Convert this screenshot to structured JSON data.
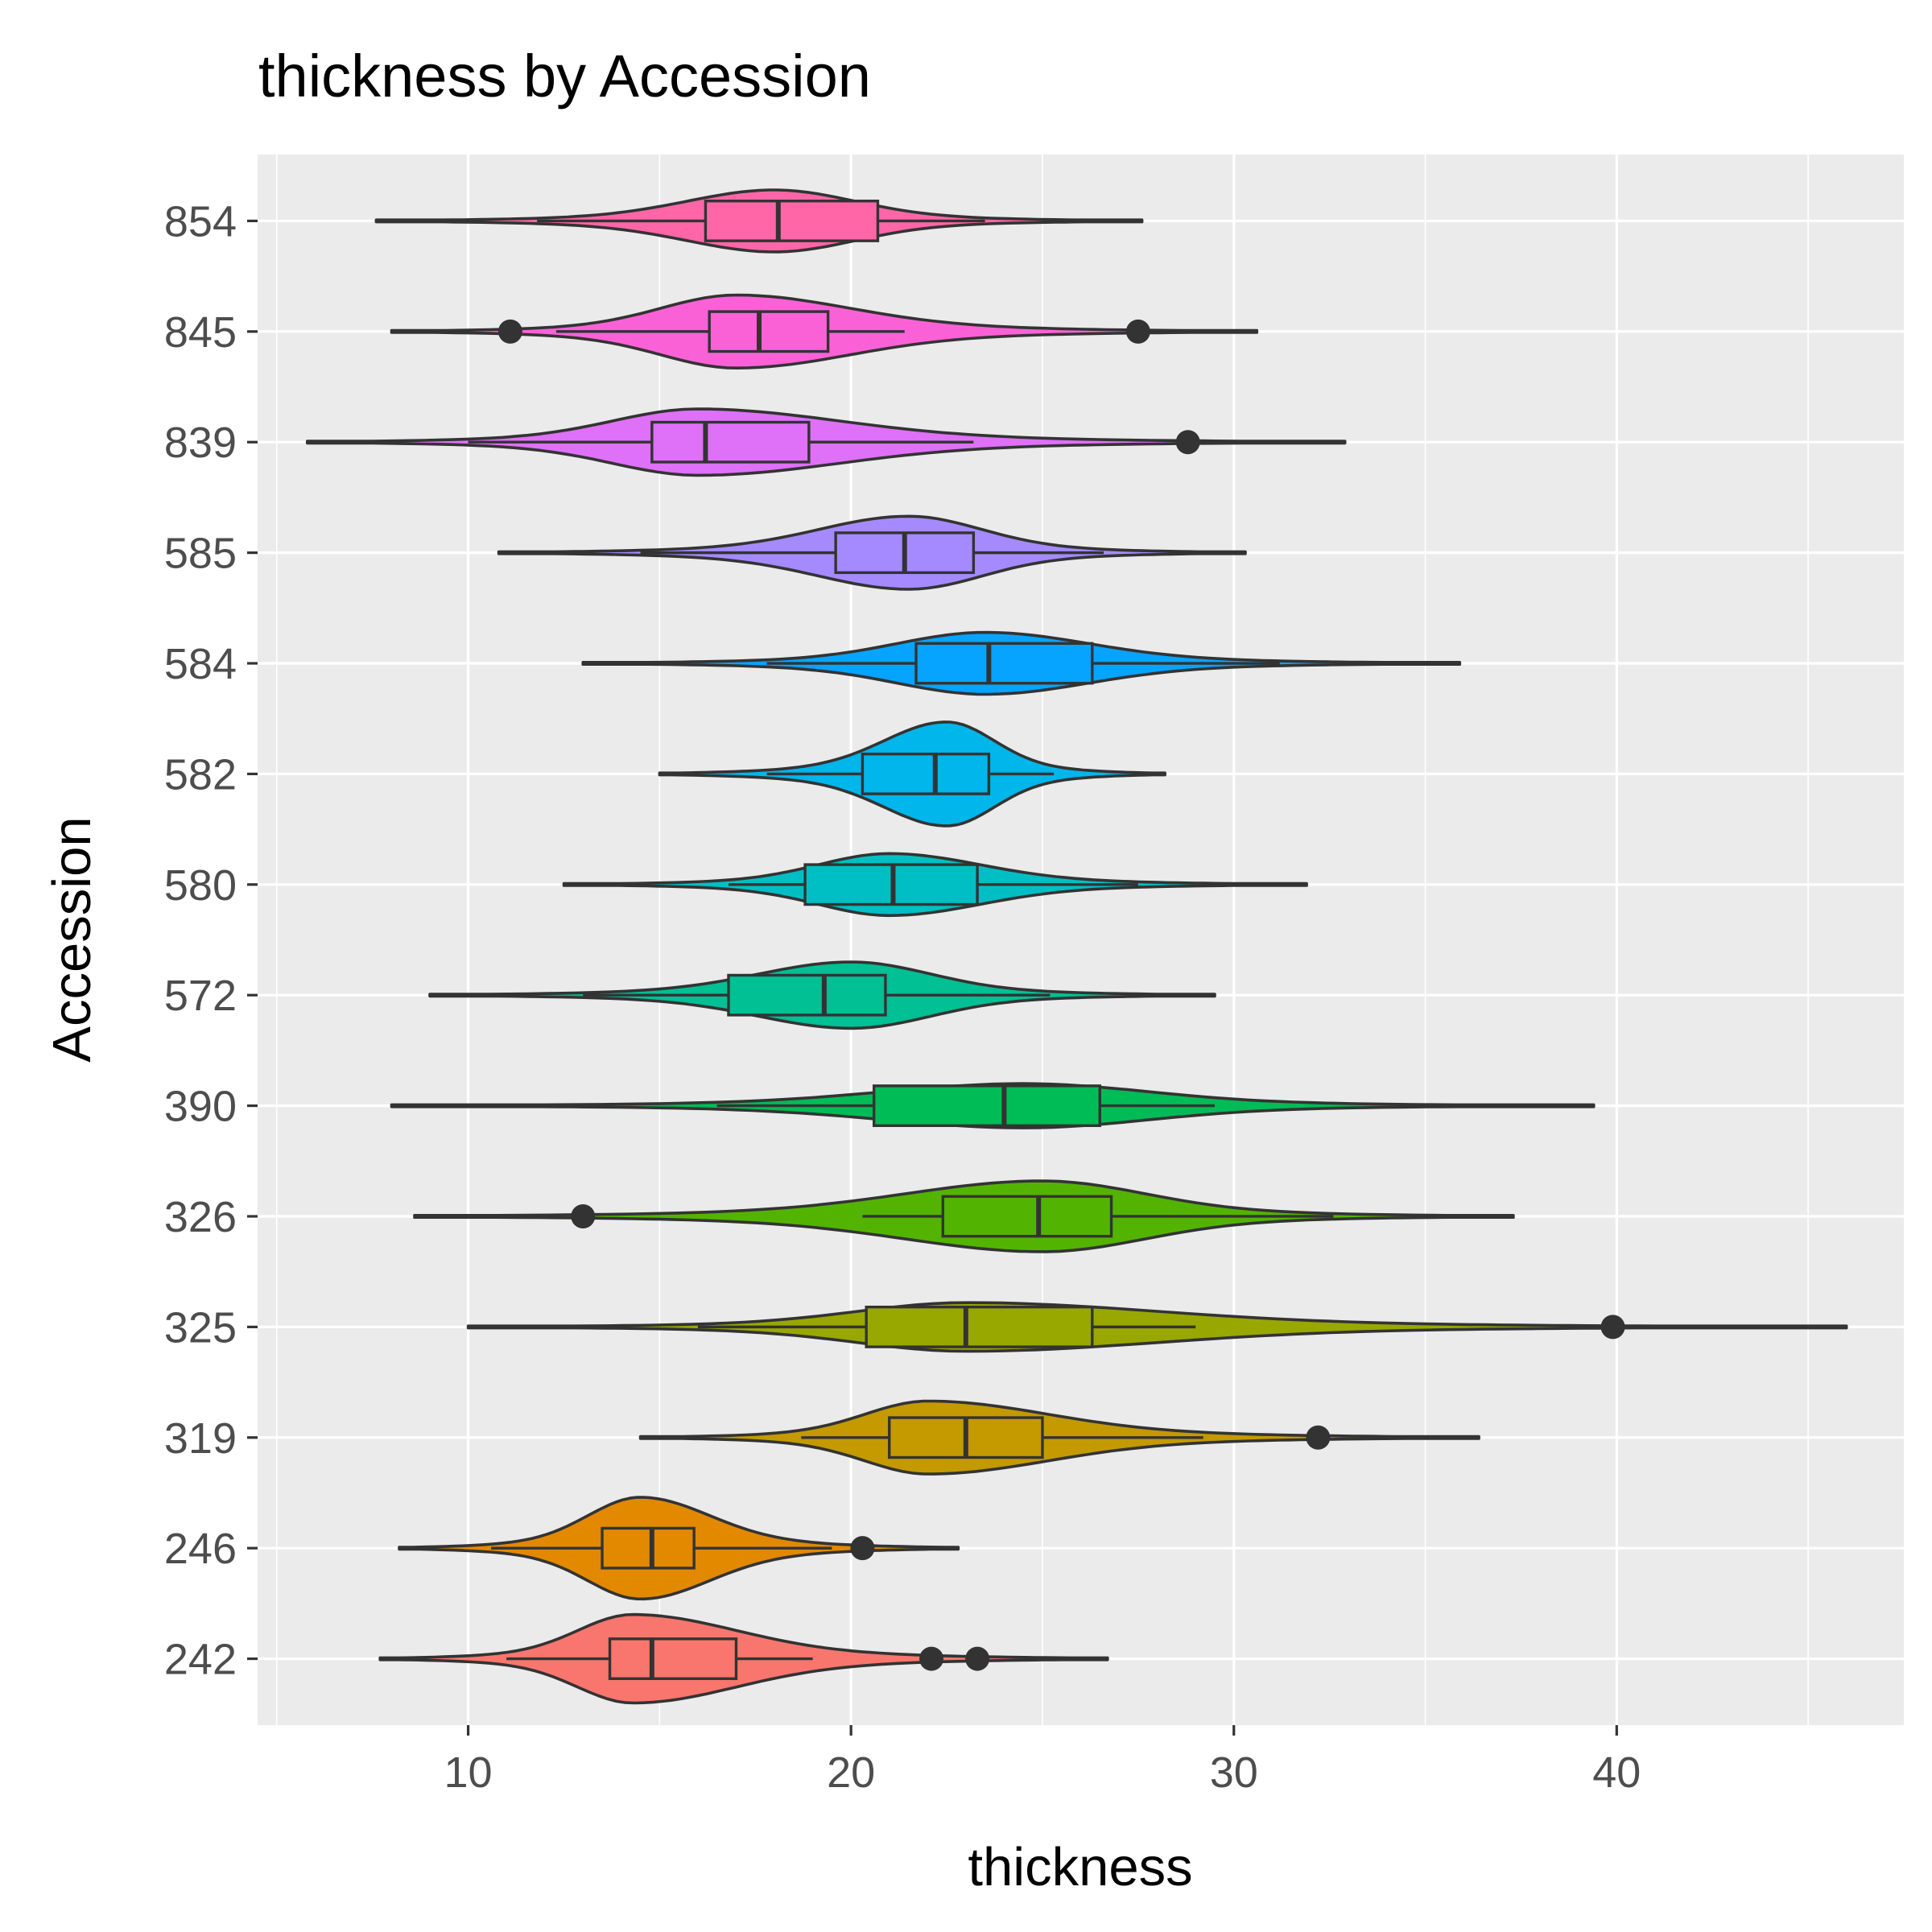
{
  "chart_data": {
    "type": "violin",
    "title": "thickness by Accession",
    "xlabel": "thickness",
    "ylabel": "Accession",
    "xlim": [
      4.5,
      47.5
    ],
    "xticks": [
      10,
      20,
      30,
      40
    ],
    "grid": true,
    "legend": "none",
    "categories": [
      "242",
      "246",
      "319",
      "325",
      "326",
      "390",
      "572",
      "580",
      "582",
      "584",
      "585",
      "839",
      "845",
      "854"
    ],
    "series": [
      {
        "category": "242",
        "color": "#F8766D",
        "min": 7.7,
        "max": 26.7,
        "q1": 13.7,
        "median": 14.8,
        "q3": 17.0,
        "whisker_low": 11.0,
        "whisker_high": 19.0,
        "peak": 14.3,
        "max_half_width": 0.4,
        "outliers": [
          22.1,
          23.3
        ]
      },
      {
        "category": "246",
        "color": "#E38900",
        "min": 8.2,
        "max": 22.8,
        "q1": 13.5,
        "median": 14.8,
        "q3": 15.9,
        "whisker_low": 10.6,
        "whisker_high": 19.5,
        "peak": 14.5,
        "max_half_width": 0.46,
        "outliers": [
          20.3
        ]
      },
      {
        "category": "319",
        "color": "#C49A00",
        "min": 14.5,
        "max": 36.4,
        "q1": 21.0,
        "median": 23.0,
        "q3": 25.0,
        "whisker_low": 18.7,
        "whisker_high": 29.2,
        "peak": 22.0,
        "max_half_width": 0.33,
        "outliers": [
          32.2
        ]
      },
      {
        "category": "325",
        "color": "#99A800",
        "min": 10.0,
        "max": 46.0,
        "q1": 20.4,
        "median": 23.0,
        "q3": 26.3,
        "whisker_low": 16.0,
        "whisker_high": 29.0,
        "peak": 23.0,
        "max_half_width": 0.22,
        "outliers": [
          39.9
        ]
      },
      {
        "category": "326",
        "color": "#53B400",
        "min": 8.6,
        "max": 37.3,
        "q1": 22.4,
        "median": 24.9,
        "q3": 26.8,
        "whisker_low": 20.3,
        "whisker_high": 32.6,
        "peak": 25.0,
        "max_half_width": 0.32,
        "outliers": [
          13.0
        ]
      },
      {
        "category": "390",
        "color": "#00BC56",
        "min": 8.0,
        "max": 39.4,
        "q1": 20.6,
        "median": 24.0,
        "q3": 26.5,
        "whisker_low": 16.5,
        "whisker_high": 29.5,
        "peak": 24.5,
        "max_half_width": 0.2,
        "outliers": []
      },
      {
        "category": "572",
        "color": "#00C094",
        "min": 9.0,
        "max": 29.5,
        "q1": 16.8,
        "median": 19.3,
        "q3": 20.9,
        "whisker_low": 13.0,
        "whisker_high": 25.2,
        "peak": 20.0,
        "max_half_width": 0.3,
        "outliers": []
      },
      {
        "category": "580",
        "color": "#00BFC4",
        "min": 12.5,
        "max": 31.9,
        "q1": 18.8,
        "median": 21.1,
        "q3": 23.3,
        "whisker_low": 16.8,
        "whisker_high": 27.5,
        "peak": 21.0,
        "max_half_width": 0.28,
        "outliers": []
      },
      {
        "category": "582",
        "color": "#00B6EB",
        "min": 15.0,
        "max": 28.2,
        "q1": 20.3,
        "median": 22.2,
        "q3": 23.6,
        "whisker_low": 17.8,
        "whisker_high": 25.3,
        "peak": 22.5,
        "max_half_width": 0.47,
        "outliers": []
      },
      {
        "category": "584",
        "color": "#06A4FF",
        "min": 13.0,
        "max": 35.9,
        "q1": 21.7,
        "median": 23.6,
        "q3": 26.3,
        "whisker_low": 17.8,
        "whisker_high": 31.2,
        "peak": 23.5,
        "max_half_width": 0.28,
        "outliers": []
      },
      {
        "category": "585",
        "color": "#A58AFF",
        "min": 10.8,
        "max": 30.3,
        "q1": 19.6,
        "median": 21.4,
        "q3": 23.2,
        "whisker_low": 14.5,
        "whisker_high": 26.6,
        "peak": 21.5,
        "max_half_width": 0.33,
        "outliers": []
      },
      {
        "category": "839",
        "color": "#DF70F8",
        "min": 5.8,
        "max": 32.9,
        "q1": 14.8,
        "median": 16.2,
        "q3": 18.9,
        "whisker_low": 10.0,
        "whisker_high": 23.2,
        "peak": 16.0,
        "max_half_width": 0.3,
        "outliers": [
          28.8
        ]
      },
      {
        "category": "845",
        "color": "#FB61D7",
        "min": 8.0,
        "max": 30.6,
        "q1": 16.3,
        "median": 17.6,
        "q3": 19.4,
        "whisker_low": 12.3,
        "whisker_high": 21.4,
        "peak": 17.0,
        "max_half_width": 0.33,
        "outliers": [
          11.1,
          27.5
        ]
      },
      {
        "category": "854",
        "color": "#FF66A8",
        "min": 7.6,
        "max": 27.6,
        "q1": 16.2,
        "median": 18.1,
        "q3": 20.7,
        "whisker_low": 11.8,
        "whisker_high": 23.5,
        "peak": 18.0,
        "max_half_width": 0.28,
        "outliers": []
      }
    ]
  }
}
